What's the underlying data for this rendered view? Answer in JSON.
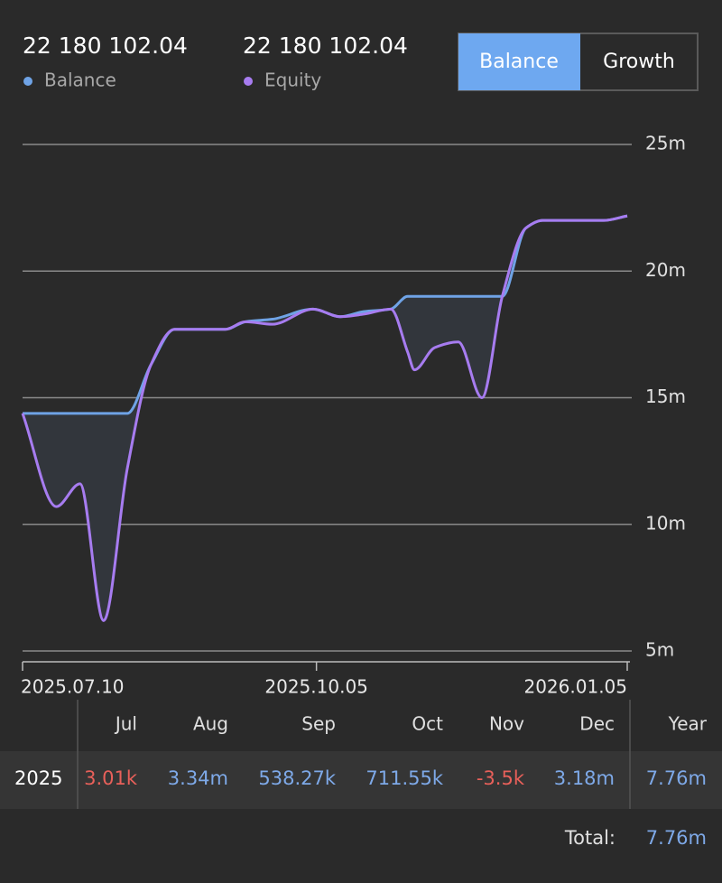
{
  "header": {
    "balance_value": "22 180 102.04",
    "balance_label": "Balance",
    "equity_value": "22 180 102.04",
    "equity_label": "Equity"
  },
  "tabs": {
    "active": "Balance",
    "other": "Growth"
  },
  "chart_data": {
    "type": "line",
    "x": [
      "2025.07.10",
      "2025.07.20",
      "2025.07.27",
      "2025.08.03",
      "2025.08.10",
      "2025.08.17",
      "2025.08.24",
      "2025.09.08",
      "2025.09.14",
      "2025.09.22",
      "2025.10.04",
      "2025.10.12",
      "2025.10.19",
      "2025.10.27",
      "2025.11.01",
      "2025.11.03",
      "2025.11.09",
      "2025.11.16",
      "2025.11.23",
      "2025.11.29",
      "2025.12.06",
      "2025.12.11",
      "2025.12.29",
      "2026.01.05"
    ],
    "series": [
      {
        "name": "Balance",
        "color": "#6fa3e6",
        "values": [
          14.38,
          14.38,
          14.38,
          14.38,
          14.38,
          16.3,
          17.7,
          17.7,
          18.0,
          18.1,
          18.5,
          18.2,
          18.4,
          18.5,
          19.0,
          19.0,
          19.0,
          19.0,
          19.0,
          19.0,
          21.7,
          22.0,
          22.0,
          22.18
        ]
      },
      {
        "name": "Equity",
        "color": "#a77cf0",
        "values": [
          14.38,
          10.7,
          11.6,
          6.2,
          12.2,
          16.3,
          17.7,
          17.7,
          18.0,
          17.9,
          18.5,
          18.2,
          18.3,
          18.5,
          16.8,
          16.1,
          16.98,
          17.2,
          15.0,
          19.0,
          21.7,
          22.0,
          22.0,
          22.18
        ]
      }
    ],
    "xlim": [
      "2025.07.10",
      "2026.01.05"
    ],
    "xticks": [
      "2025.07.10",
      "2025.10.05",
      "2026.01.05"
    ],
    "ylim": [
      5,
      25
    ],
    "yticks": [
      {
        "value": 5,
        "label": "5m"
      },
      {
        "value": 10,
        "label": "10m"
      },
      {
        "value": 15,
        "label": "15m"
      },
      {
        "value": 20,
        "label": "20m"
      },
      {
        "value": 25,
        "label": "25m"
      }
    ],
    "grid": true,
    "fill_between": true,
    "fill_color": "#32363c"
  },
  "table": {
    "columns": [
      "Jul",
      "Aug",
      "Sep",
      "Oct",
      "Nov",
      "Dec",
      "Year"
    ],
    "rows": [
      {
        "label": "2025",
        "cells": [
          {
            "text": "3.01k",
            "color": "#e8605a"
          },
          {
            "text": "3.34m",
            "color": "#7ea9e8"
          },
          {
            "text": "538.27k",
            "color": "#7ea9e8"
          },
          {
            "text": "711.55k",
            "color": "#7ea9e8"
          },
          {
            "text": "-3.5k",
            "color": "#e8605a"
          },
          {
            "text": "3.18m",
            "color": "#7ea9e8"
          },
          {
            "text": "7.76m",
            "color": "#7ea9e8"
          }
        ]
      }
    ],
    "total": {
      "label": "Total:",
      "value": "7.76m",
      "color": "#7ea9e8"
    }
  }
}
